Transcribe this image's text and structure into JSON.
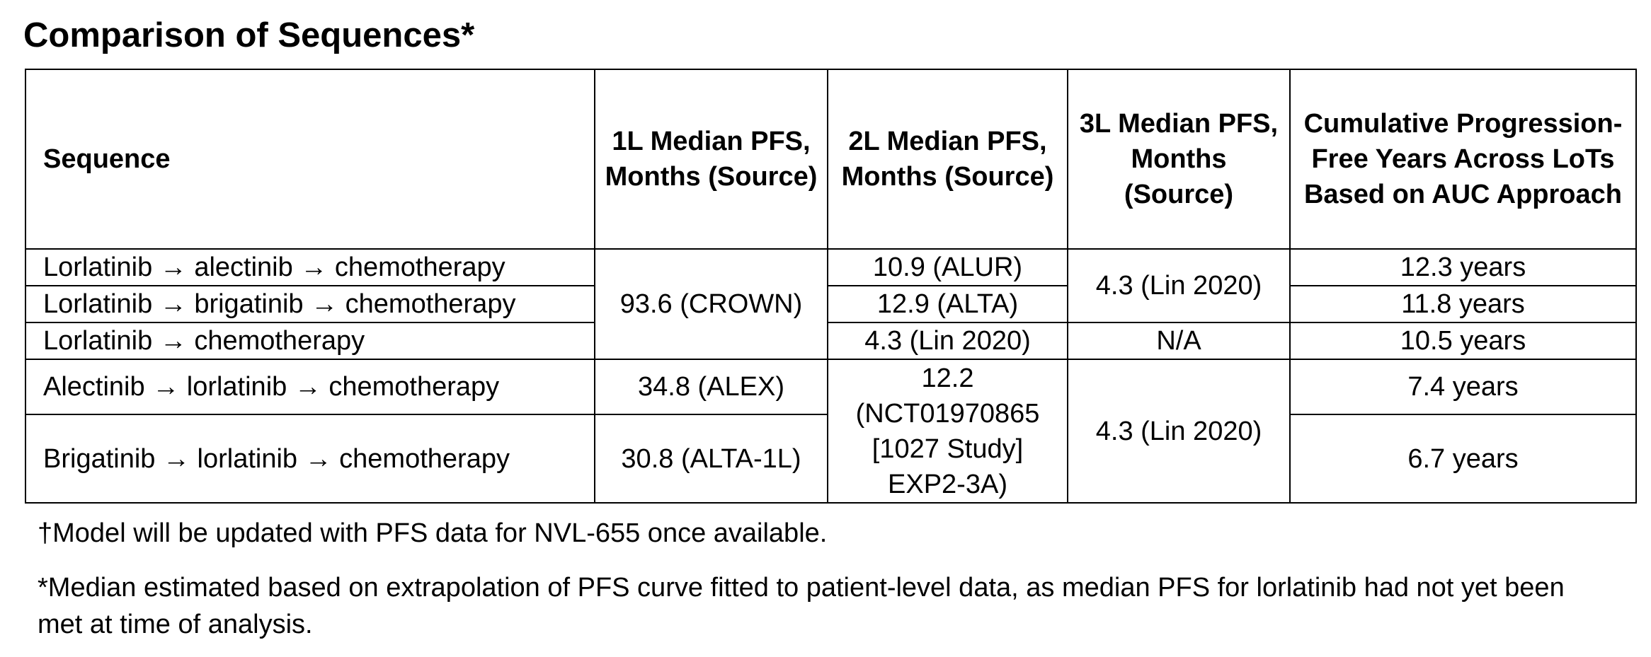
{
  "title": "Comparison of Sequences*",
  "table": {
    "headers": {
      "sequence": "Sequence",
      "l1": "1L Median PFS, Months (Source)",
      "l2": "2L Median PFS, Months (Source)",
      "l3": "3L Median PFS, Months (Source)",
      "cumulative": "Cumulative Progression-Free Years Across LoTs Based on AUC Approach"
    },
    "rows": [
      {
        "sequence": "Lorlatinib → alectinib → chemotherapy",
        "l2": "10.9 (ALUR)",
        "cumulative": "12.3 years"
      },
      {
        "sequence": "Lorlatinib → brigatinib → chemotherapy",
        "l2": "12.9 (ALTA)",
        "cumulative": "11.8 years"
      },
      {
        "sequence": "Lorlatinib → chemotherapy",
        "l2": "4.3 (Lin 2020)",
        "l3": "N/A",
        "cumulative": "10.5 years"
      },
      {
        "sequence": "Alectinib → lorlatinib → chemotherapy",
        "l1": "34.8 (ALEX)",
        "cumulative": "7.4 years"
      },
      {
        "sequence": "Brigatinib → lorlatinib → chemotherapy",
        "l1": "30.8 (ALTA-1L)",
        "cumulative": "6.7 years"
      }
    ],
    "merged": {
      "l1_lorlatinib": "93.6 (CROWN)",
      "l3_group1": "4.3 (Lin 2020)",
      "l2_group2": "12.2 (NCT01970865 [1027 Study] EXP2-3A)",
      "l3_group2": "4.3 (Lin 2020)"
    }
  },
  "footnotes": {
    "dagger": "†Model will be updated with PFS data for NVL-655 once available.",
    "star": "*Median estimated based on extrapolation of PFS curve fitted to patient-level data, as median PFS for lorlatinib had not yet been met at time of analysis."
  }
}
